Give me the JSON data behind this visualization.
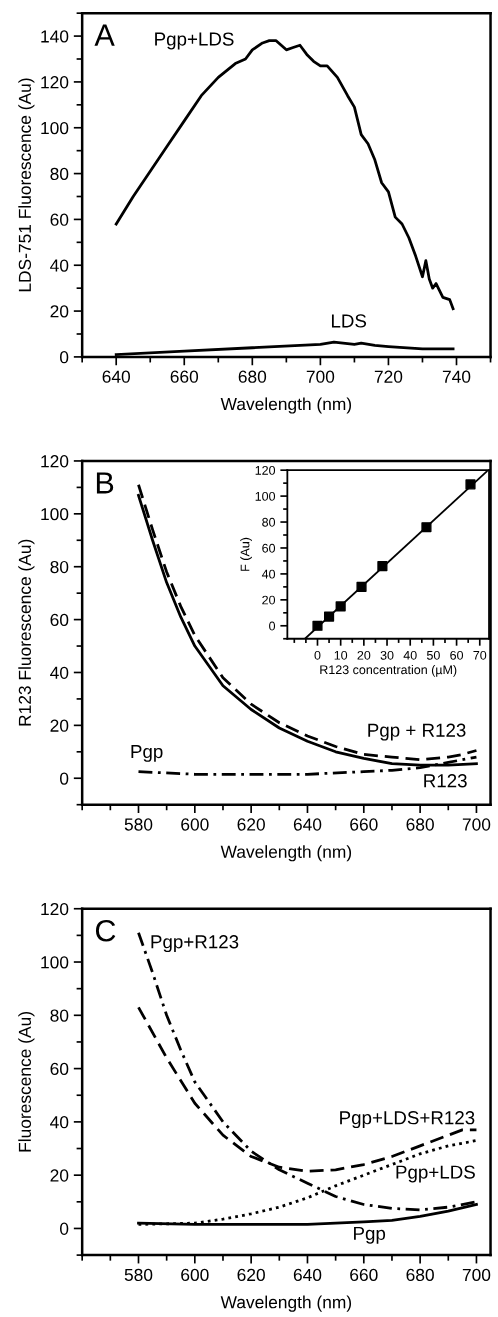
{
  "chart_data": [
    {
      "type": "line",
      "xlabel": "Wavelength (nm)",
      "ylabel": "LDS-751 Fluorescence (Au)",
      "xlim": [
        630,
        750
      ],
      "xticks": [
        640,
        660,
        680,
        700,
        720,
        740
      ],
      "ylim": [
        0,
        150
      ],
      "yticks": [
        0,
        20,
        40,
        60,
        80,
        100,
        120,
        140
      ],
      "grid": false,
      "annotations": [
        "A"
      ],
      "series": [
        {
          "name": "Pgp+LDS",
          "color": "#000000",
          "line_style": "solid",
          "x": [
            640,
            645,
            650,
            655,
            660,
            665,
            670,
            675,
            678,
            680,
            683,
            685,
            687,
            690,
            692,
            694,
            696,
            698,
            700,
            702,
            705,
            708,
            710,
            712,
            714,
            716,
            718,
            720,
            722,
            724,
            726,
            728,
            730,
            731,
            732,
            733,
            734,
            736,
            738,
            739
          ],
          "values": [
            58,
            70,
            81,
            92,
            103,
            114,
            122,
            128,
            130,
            134,
            137,
            138,
            138,
            134,
            135,
            136,
            132,
            129,
            127,
            127,
            122,
            114,
            109,
            97,
            93,
            86,
            76,
            72,
            61,
            58,
            52,
            44,
            35,
            42,
            34,
            30,
            32,
            26,
            25,
            21
          ]
        },
        {
          "name": "LDS",
          "color": "#000000",
          "line_style": "solid",
          "x": [
            640,
            660,
            680,
            700,
            704,
            710,
            712,
            716,
            720,
            730,
            735,
            739
          ],
          "values": [
            1,
            2.5,
            4,
            5.5,
            6.5,
            5.5,
            6,
            5,
            4.5,
            3.5,
            3.5,
            3.5
          ]
        }
      ]
    },
    {
      "type": "line",
      "xlabel": "Wavelength (nm)",
      "ylabel": "R123 Fluorescence (Au)",
      "xlim": [
        560,
        705
      ],
      "xticks": [
        580,
        600,
        620,
        640,
        660,
        680,
        700
      ],
      "ylim": [
        -10,
        120
      ],
      "yticks": [
        0,
        20,
        40,
        60,
        80,
        100,
        120
      ],
      "grid": false,
      "annotations": [
        "B"
      ],
      "series": [
        {
          "name": "R123",
          "color": "#000000",
          "line_style": "solid",
          "x": [
            580,
            585,
            590,
            595,
            600,
            610,
            620,
            630,
            640,
            650,
            660,
            670,
            680,
            690,
            700
          ],
          "values": [
            107,
            90,
            74,
            61,
            50,
            35,
            26,
            19,
            14,
            10,
            7.5,
            5.5,
            5,
            5,
            5.5
          ]
        },
        {
          "name": "Pgp + R123",
          "color": "#000000",
          "line_style": "dashed",
          "x": [
            580,
            585,
            590,
            595,
            600,
            610,
            620,
            630,
            640,
            650,
            660,
            670,
            680,
            690,
            695,
            700
          ],
          "values": [
            111,
            94,
            78,
            65,
            54,
            38,
            28,
            21,
            16,
            12,
            9,
            8,
            7,
            8,
            9,
            10.5
          ]
        },
        {
          "name": "Pgp",
          "color": "#000000",
          "line_style": "dashdot",
          "x": [
            580,
            600,
            620,
            640,
            660,
            670,
            680,
            690,
            700
          ],
          "values": [
            2.5,
            1.5,
            1.5,
            1.5,
            2.5,
            3,
            4,
            6,
            8
          ]
        }
      ]
    },
    {
      "type": "scatter",
      "xlabel": "R123 concentration (µM)",
      "ylabel": "F (Au)",
      "xlim": [
        -13,
        74
      ],
      "xticks": [
        0,
        10,
        20,
        30,
        40,
        50,
        60,
        70
      ],
      "ylim": [
        -10,
        120
      ],
      "yticks": [
        0,
        20,
        40,
        60,
        80,
        100,
        120
      ],
      "grid": false,
      "series": [
        {
          "type": "line",
          "color": "#000000",
          "line_style": "solid",
          "x": [
            -5.4,
            73
          ],
          "values": [
            -10,
            119
          ]
        },
        {
          "type": "scatter",
          "color": "#000000",
          "marker": "square",
          "x": [
            0,
            5,
            10,
            19,
            28,
            47,
            66
          ],
          "values": [
            0,
            7,
            15,
            30,
            46,
            76,
            109
          ]
        }
      ]
    },
    {
      "type": "line",
      "xlabel": "Wavelength (nm)",
      "ylabel": "Fluorescence (Au)",
      "xlim": [
        560,
        705
      ],
      "xticks": [
        580,
        600,
        620,
        640,
        660,
        680,
        700
      ],
      "ylim": [
        -10,
        120
      ],
      "yticks": [
        0,
        20,
        40,
        60,
        80,
        100,
        120
      ],
      "grid": false,
      "annotations": [
        "C"
      ],
      "series": [
        {
          "name": "Pgp+R123",
          "color": "#000000",
          "line_style": "dashdot",
          "x": [
            580,
            585,
            590,
            595,
            600,
            610,
            620,
            630,
            640,
            650,
            660,
            670,
            680,
            690,
            700
          ],
          "values": [
            111,
            96,
            80,
            67,
            55,
            40,
            29,
            22,
            17,
            12,
            9,
            7.5,
            7,
            8,
            10
          ]
        },
        {
          "name": "Pgp+LDS+R123",
          "color": "#000000",
          "line_style": "dashed",
          "x": [
            580,
            590,
            600,
            610,
            620,
            630,
            640,
            650,
            660,
            670,
            680,
            690,
            695,
            700
          ],
          "values": [
            83,
            64,
            47,
            35,
            27,
            23,
            21.5,
            22,
            24,
            27,
            31,
            35,
            37,
            37
          ]
        },
        {
          "name": "Pgp+LDS",
          "color": "#000000",
          "line_style": "dotted",
          "x": [
            580,
            600,
            610,
            620,
            630,
            640,
            650,
            660,
            670,
            680,
            690,
            700
          ],
          "values": [
            1.5,
            2,
            3.5,
            5.5,
            8,
            11.5,
            16,
            20,
            24,
            28,
            31,
            33
          ]
        },
        {
          "name": "Pgp",
          "color": "#000000",
          "line_style": "solid",
          "x": [
            580,
            600,
            620,
            640,
            660,
            670,
            680,
            690,
            700
          ],
          "values": [
            2,
            1.5,
            1.5,
            1.5,
            2.5,
            3,
            4.5,
            6.5,
            9
          ]
        }
      ]
    }
  ]
}
